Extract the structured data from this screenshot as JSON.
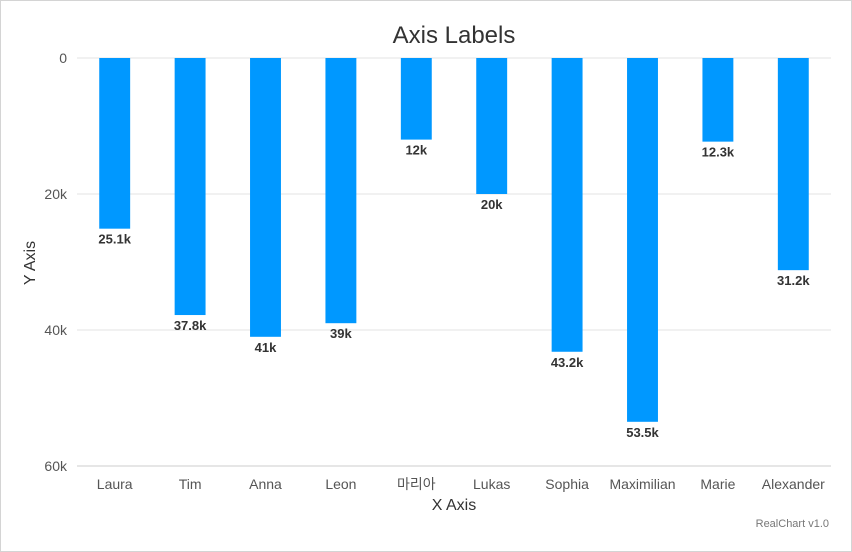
{
  "chart_data": {
    "type": "bar",
    "title": "Axis Labels",
    "xlabel": "X Axis",
    "ylabel": "Y Axis",
    "categories": [
      "Laura",
      "Tim",
      "Anna",
      "Leon",
      "마리아",
      "Lukas",
      "Sophia",
      "Maximilian",
      "Marie",
      "Alexander"
    ],
    "values": [
      25100,
      37800,
      41000,
      39000,
      12000,
      20000,
      43200,
      53500,
      12300,
      31200
    ],
    "data_labels": [
      "25.1k",
      "37.8k",
      "41k",
      "39k",
      "12k",
      "20k",
      "43.2k",
      "53.5k",
      "12.3k",
      "31.2k"
    ],
    "y_ticks": [
      "0",
      "20k",
      "40k",
      "60k"
    ],
    "y_tick_values": [
      0,
      20000,
      40000,
      60000
    ],
    "ylim": [
      0,
      60000
    ],
    "y_reversed": true,
    "grid": true,
    "bar_color": "#0098ff",
    "credit": "RealChart v1.0"
  }
}
